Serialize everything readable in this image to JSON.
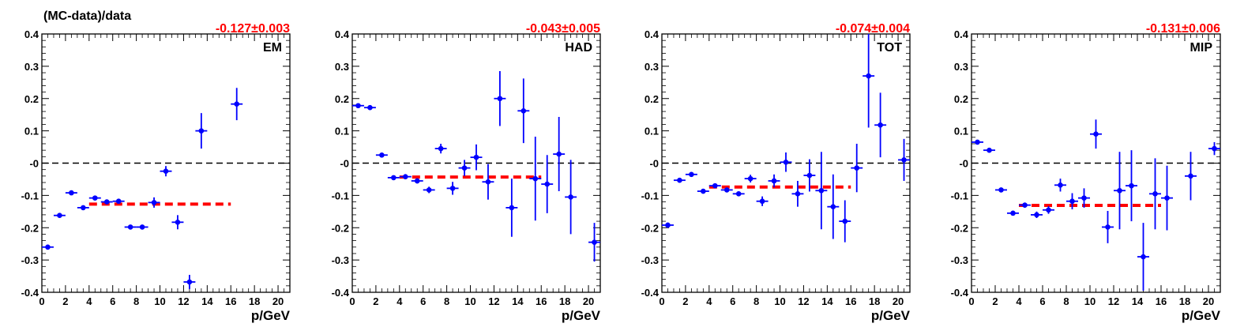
{
  "figure": {
    "ylabel": "(MC-data)/data",
    "xlabel": "p/GeV",
    "fit_color": "#ff0000",
    "marker_color": "#0000ff",
    "fit_label_color": "#ff0000",
    "zero_line_color": "#000000"
  },
  "chart_data": [
    {
      "type": "scatter",
      "panel_label": "EM",
      "fit_result": "-0.127±0.003",
      "fit_value": -0.127,
      "fit_range": [
        4,
        16
      ],
      "xlabel": "p/GeV",
      "ylabel": "(MC-data)/data",
      "xlim": [
        0,
        21
      ],
      "ylim": [
        -0.4,
        0.4
      ],
      "xticks": [
        0,
        2,
        4,
        6,
        8,
        10,
        12,
        14,
        16,
        18,
        20
      ],
      "yticks": [
        -0.4,
        -0.3,
        -0.2,
        -0.1,
        0,
        0.1,
        0.2,
        0.3,
        0.4
      ],
      "ytick_labels": [
        "-0.4",
        "-0.3",
        "-0.2",
        "-0.1",
        "-0",
        "0.1",
        "0.2",
        "0.3",
        "0.4"
      ],
      "grid": false,
      "series": [
        {
          "x": [
            0.5,
            1.5,
            2.5,
            3.5,
            4.5,
            5.5,
            6.5,
            7.5,
            8.5,
            9.5,
            10.5,
            11.5,
            12.5,
            13.5,
            16.5
          ],
          "y": [
            -0.26,
            -0.162,
            -0.092,
            -0.138,
            -0.108,
            -0.12,
            -0.118,
            -0.198,
            -0.198,
            -0.122,
            -0.025,
            -0.183,
            -0.368,
            0.1,
            0.183
          ],
          "err": [
            0.008,
            0.006,
            0.006,
            0.006,
            0.006,
            0.006,
            0.006,
            0.006,
            0.006,
            0.016,
            0.016,
            0.022,
            0.022,
            0.055,
            0.05
          ]
        }
      ]
    },
    {
      "type": "scatter",
      "panel_label": "HAD",
      "fit_result": "-0.043±0.005",
      "fit_value": -0.043,
      "fit_range": [
        4,
        16
      ],
      "xlabel": "p/GeV",
      "xlim": [
        0,
        21
      ],
      "ylim": [
        -0.4,
        0.4
      ],
      "xticks": [
        0,
        2,
        4,
        6,
        8,
        10,
        12,
        14,
        16,
        18,
        20
      ],
      "yticks": [
        -0.4,
        -0.3,
        -0.2,
        -0.1,
        0,
        0.1,
        0.2,
        0.3,
        0.4
      ],
      "ytick_labels": [
        "-0.4",
        "-0.3",
        "-0.2",
        "-0.1",
        "-0",
        "0.1",
        "0.2",
        "0.3",
        "0.4"
      ],
      "grid": false,
      "series": [
        {
          "x": [
            0.5,
            1.5,
            2.5,
            3.5,
            4.5,
            5.5,
            6.5,
            7.5,
            8.5,
            9.5,
            10.5,
            11.5,
            12.5,
            13.5,
            14.5,
            15.5,
            16.5,
            17.5,
            18.5,
            20.5
          ],
          "y": [
            0.178,
            0.172,
            0.025,
            -0.045,
            -0.042,
            -0.055,
            -0.083,
            0.045,
            -0.078,
            -0.015,
            0.018,
            -0.058,
            0.2,
            -0.138,
            0.162,
            -0.048,
            -0.065,
            0.028,
            -0.105,
            -0.245
          ],
          "err": [
            0.006,
            0.005,
            0.006,
            0.006,
            0.008,
            0.008,
            0.01,
            0.015,
            0.02,
            0.025,
            0.04,
            0.055,
            0.085,
            0.09,
            0.1,
            0.13,
            0.09,
            0.115,
            0.115,
            0.06
          ]
        }
      ]
    },
    {
      "type": "scatter",
      "panel_label": "TOT",
      "fit_result": "-0.074±0.004",
      "fit_value": -0.074,
      "fit_range": [
        4,
        16
      ],
      "xlabel": "p/GeV",
      "xlim": [
        0,
        21
      ],
      "ylim": [
        -0.4,
        0.4
      ],
      "xticks": [
        0,
        2,
        4,
        6,
        8,
        10,
        12,
        14,
        16,
        18,
        20
      ],
      "yticks": [
        -0.4,
        -0.3,
        -0.2,
        -0.1,
        0,
        0.1,
        0.2,
        0.3,
        0.4
      ],
      "ytick_labels": [
        "-0.4",
        "-0.3",
        "-0.2",
        "-0.1",
        "-0",
        "0.1",
        "0.2",
        "0.3",
        "0.4"
      ],
      "grid": false,
      "series": [
        {
          "x": [
            0.5,
            1.5,
            2.5,
            3.5,
            4.5,
            5.5,
            6.5,
            7.5,
            8.5,
            9.5,
            10.5,
            11.5,
            12.5,
            13.5,
            14.5,
            15.5,
            16.5,
            17.5,
            18.5,
            20.5
          ],
          "y": [
            -0.192,
            -0.053,
            -0.035,
            -0.087,
            -0.07,
            -0.083,
            -0.095,
            -0.048,
            -0.118,
            -0.055,
            0.003,
            -0.095,
            -0.038,
            -0.085,
            -0.135,
            -0.18,
            -0.015,
            0.27,
            0.118,
            0.01
          ],
          "err": [
            0.008,
            0.005,
            0.005,
            0.005,
            0.006,
            0.006,
            0.007,
            0.012,
            0.015,
            0.02,
            0.03,
            0.04,
            0.05,
            0.12,
            0.1,
            0.065,
            0.075,
            0.16,
            0.1,
            0.065
          ]
        }
      ]
    },
    {
      "type": "scatter",
      "panel_label": "MIP",
      "fit_result": "-0.131±0.006",
      "fit_value": -0.131,
      "fit_range": [
        4,
        16
      ],
      "xlabel": "p/GeV",
      "xlim": [
        0,
        21
      ],
      "ylim": [
        -0.4,
        0.4
      ],
      "xticks": [
        0,
        2,
        4,
        6,
        8,
        10,
        12,
        14,
        16,
        18,
        20
      ],
      "yticks": [
        -0.4,
        -0.3,
        -0.2,
        -0.1,
        0,
        0.1,
        0.2,
        0.3,
        0.4
      ],
      "ytick_labels": [
        "-0.4",
        "-0.3",
        "-0.2",
        "-0.1",
        "-0",
        "0.1",
        "0.2",
        "0.3",
        "0.4"
      ],
      "grid": false,
      "series": [
        {
          "x": [
            0.5,
            1.5,
            2.5,
            3.5,
            4.5,
            5.5,
            6.5,
            7.5,
            8.5,
            9.5,
            10.5,
            11.5,
            12.5,
            13.5,
            14.5,
            15.5,
            16.5,
            18.5,
            20.5
          ],
          "y": [
            0.065,
            0.04,
            -0.083,
            -0.155,
            -0.13,
            -0.16,
            -0.145,
            -0.068,
            -0.118,
            -0.108,
            0.09,
            -0.198,
            -0.085,
            -0.07,
            -0.29,
            -0.095,
            -0.108,
            -0.04,
            0.045
          ],
          "err": [
            0.006,
            0.006,
            0.006,
            0.006,
            0.008,
            0.01,
            0.012,
            0.02,
            0.025,
            0.03,
            0.045,
            0.05,
            0.12,
            0.11,
            0.105,
            0.11,
            0.1,
            0.075,
            0.02
          ]
        }
      ]
    }
  ]
}
